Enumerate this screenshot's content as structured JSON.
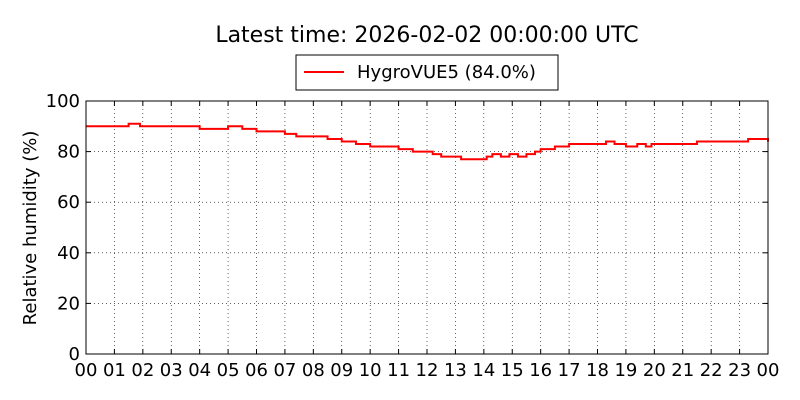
{
  "chart_data": {
    "type": "line",
    "title": "Latest time: 2026-02-02 00:00:00 UTC",
    "xlabel": "",
    "ylabel": "Relative humidity (%)",
    "xlim": [
      0,
      24
    ],
    "ylim": [
      0,
      100
    ],
    "grid": true,
    "legend_position": "top-center",
    "x_ticks": [
      "00",
      "01",
      "02",
      "03",
      "04",
      "05",
      "06",
      "07",
      "08",
      "09",
      "10",
      "11",
      "12",
      "13",
      "14",
      "15",
      "16",
      "17",
      "18",
      "19",
      "20",
      "21",
      "22",
      "23",
      "00"
    ],
    "y_ticks": [
      0,
      20,
      40,
      60,
      80,
      100
    ],
    "series": [
      {
        "name": "HygroVUE5 (84.0%)",
        "color": "#ff0000",
        "x": [
          0.0,
          1.5,
          1.9,
          3.8,
          4.0,
          4.5,
          5.0,
          5.5,
          6.0,
          7.0,
          7.4,
          8.0,
          8.5,
          9.0,
          9.5,
          10.0,
          11.0,
          11.5,
          11.8,
          12.2,
          12.5,
          12.8,
          13.2,
          13.8,
          14.1,
          14.3,
          14.6,
          14.9,
          15.2,
          15.5,
          15.8,
          16.0,
          16.5,
          17.0,
          17.5,
          18.0,
          18.3,
          18.6,
          19.0,
          19.4,
          19.7,
          19.9,
          20.0,
          21.0,
          21.5,
          22.0,
          22.5,
          23.0,
          23.3,
          24.0
        ],
        "y": [
          90,
          91,
          90,
          90,
          89,
          89,
          90,
          89,
          88,
          87,
          86,
          86,
          85,
          84,
          83,
          82,
          81,
          80,
          80,
          79,
          78,
          78,
          77,
          77,
          78,
          79,
          78,
          79,
          78,
          79,
          80,
          81,
          82,
          83,
          83,
          83,
          84,
          83,
          82,
          83,
          82,
          83,
          83,
          83,
          84,
          84,
          84,
          84,
          85,
          84
        ]
      }
    ]
  }
}
